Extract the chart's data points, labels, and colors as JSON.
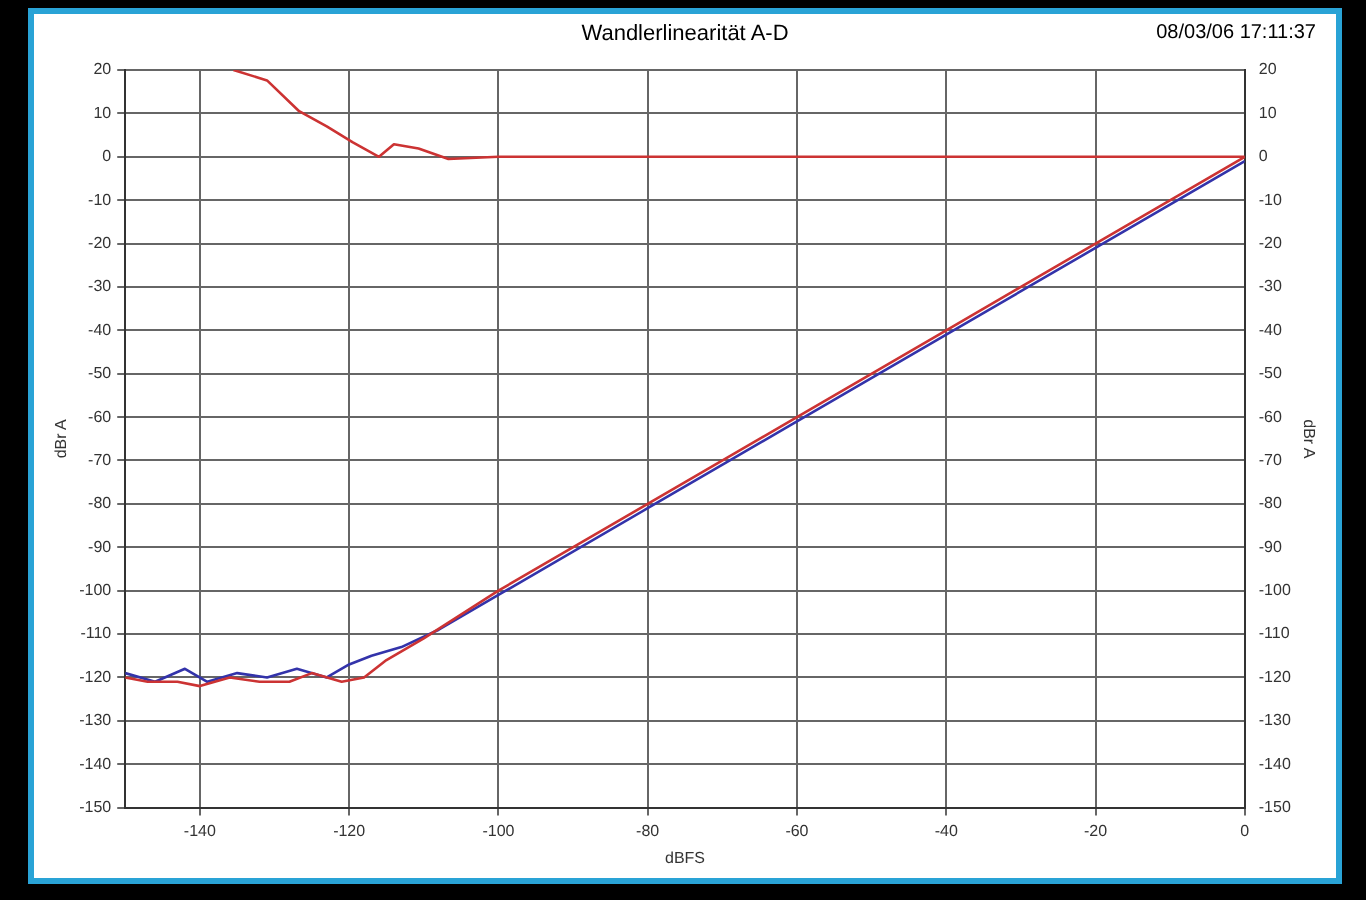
{
  "chart_data": {
    "type": "line",
    "title": "Wandlerlinearität A-D",
    "xlabel": "dBFS",
    "ylabel": "dBr A",
    "y2label": "dBr A",
    "annotations": [
      "08/03/06 17:11:37"
    ],
    "xlim": [
      -150,
      0
    ],
    "xticks": [
      -140,
      -120,
      -100,
      -80,
      -60,
      -40,
      -20,
      0
    ],
    "ylim": [
      -150,
      20
    ],
    "yticks": [
      -150,
      -140,
      -130,
      -120,
      -110,
      -100,
      -90,
      -80,
      -70,
      -60,
      -50,
      -40,
      -30,
      -20,
      -10,
      0,
      10,
      20
    ],
    "y2lim": [
      -150,
      20
    ],
    "y2ticks": [
      -150,
      -140,
      -130,
      -120,
      -110,
      -100,
      -90,
      -80,
      -70,
      -60,
      -50,
      -40,
      -30,
      -20,
      -10,
      0,
      10,
      20
    ],
    "grid": true,
    "legend": false,
    "marker": "none",
    "line_style": "solid",
    "series": [
      {
        "color": "#cc3333",
        "x": [
          -150,
          -147,
          -143,
          -140,
          -136,
          -132,
          -128,
          -125,
          -121,
          -118,
          -115,
          -110,
          -100,
          -80,
          -60,
          -40,
          -20,
          0
        ],
        "values": [
          -120,
          -121,
          -121,
          -122,
          -120,
          -121,
          -121,
          -119,
          -121,
          -120,
          -116,
          -111,
          -100,
          -80,
          -60,
          -40,
          -20,
          0
        ]
      },
      {
        "color": "#3333aa",
        "x": [
          -150,
          -146,
          -142,
          -139,
          -135,
          -131,
          -127,
          -123,
          -120,
          -117,
          -113,
          -108,
          -100,
          -80,
          -60,
          -40,
          -20,
          0
        ],
        "values": [
          -119,
          -121,
          -118,
          -121,
          -119,
          -120,
          -118,
          -120,
          -117,
          -115,
          -113,
          -109,
          -101,
          -81,
          -61,
          -41,
          -21,
          -1
        ]
      },
      {
        "color": "#cc3333",
        "x": [
          -135.5,
          -131,
          -126.7,
          -123,
          -119.5,
          -116,
          -114,
          -110.7,
          -106.7,
          -100,
          -80,
          -60,
          -40,
          -20,
          0
        ],
        "values": [
          20,
          17.6,
          10.5,
          7,
          3.3,
          0,
          2.9,
          1.9,
          -0.5,
          0,
          0,
          0,
          0,
          0,
          0
        ]
      }
    ]
  }
}
